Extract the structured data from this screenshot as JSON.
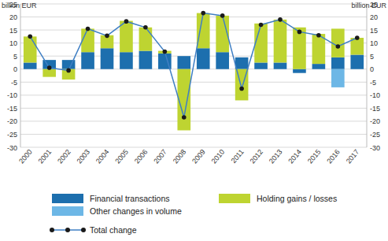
{
  "chart_data": {
    "type": "bar",
    "stacked": true,
    "y_label": "billion EUR",
    "y2_label": "billion EUR",
    "grid": true,
    "legend": "bottom",
    "categories": [
      "2000",
      "2001",
      "2002",
      "2003",
      "2004",
      "2005",
      "2006",
      "2007",
      "2008",
      "2009",
      "2010",
      "2011",
      "2012",
      "2013",
      "2014",
      "2015",
      "2016",
      "2017"
    ],
    "ylim": [
      -30,
      25
    ],
    "yticks": [
      -30,
      -25,
      -20,
      -15,
      -10,
      -5,
      0,
      5,
      10,
      15,
      20,
      25
    ],
    "y2lim": [
      -30,
      25
    ],
    "y2ticks": [
      -30,
      -25,
      -20,
      -15,
      -10,
      -5,
      0,
      5,
      10,
      15,
      20,
      25
    ],
    "series": [
      {
        "name": "Financial transactions",
        "color": "#1d6fae",
        "type": "bar",
        "values": [
          2.5,
          3.5,
          3.5,
          6.5,
          8,
          6.5,
          7,
          6,
          5,
          8,
          6.5,
          4.5,
          2.5,
          2.5,
          -1.5,
          2,
          4.5,
          5.5
        ]
      },
      {
        "name": "Holding gains / losses",
        "color": "#bed431",
        "type": "bar",
        "values": [
          10,
          -3,
          -4,
          9,
          5,
          12,
          9,
          1,
          -23.5,
          13.5,
          14,
          -12,
          15,
          16.5,
          16,
          11.5,
          11,
          6.5
        ]
      },
      {
        "name": "Other changes in volume",
        "color": "#6db7e6",
        "type": "bar",
        "values": [
          0,
          0,
          0,
          0,
          0,
          0,
          0,
          0,
          0,
          0,
          0,
          0,
          0,
          0,
          0,
          0,
          -7,
          0
        ]
      },
      {
        "name": "Total change",
        "color": "#3f7fc4",
        "type": "line",
        "marker": "circle",
        "values": [
          12.5,
          0.5,
          -0.5,
          15.5,
          12.8,
          18.3,
          16,
          6.7,
          -18.5,
          21.5,
          20.5,
          -7.5,
          17,
          19,
          14.3,
          13,
          8.7,
          12
        ]
      }
    ]
  }
}
